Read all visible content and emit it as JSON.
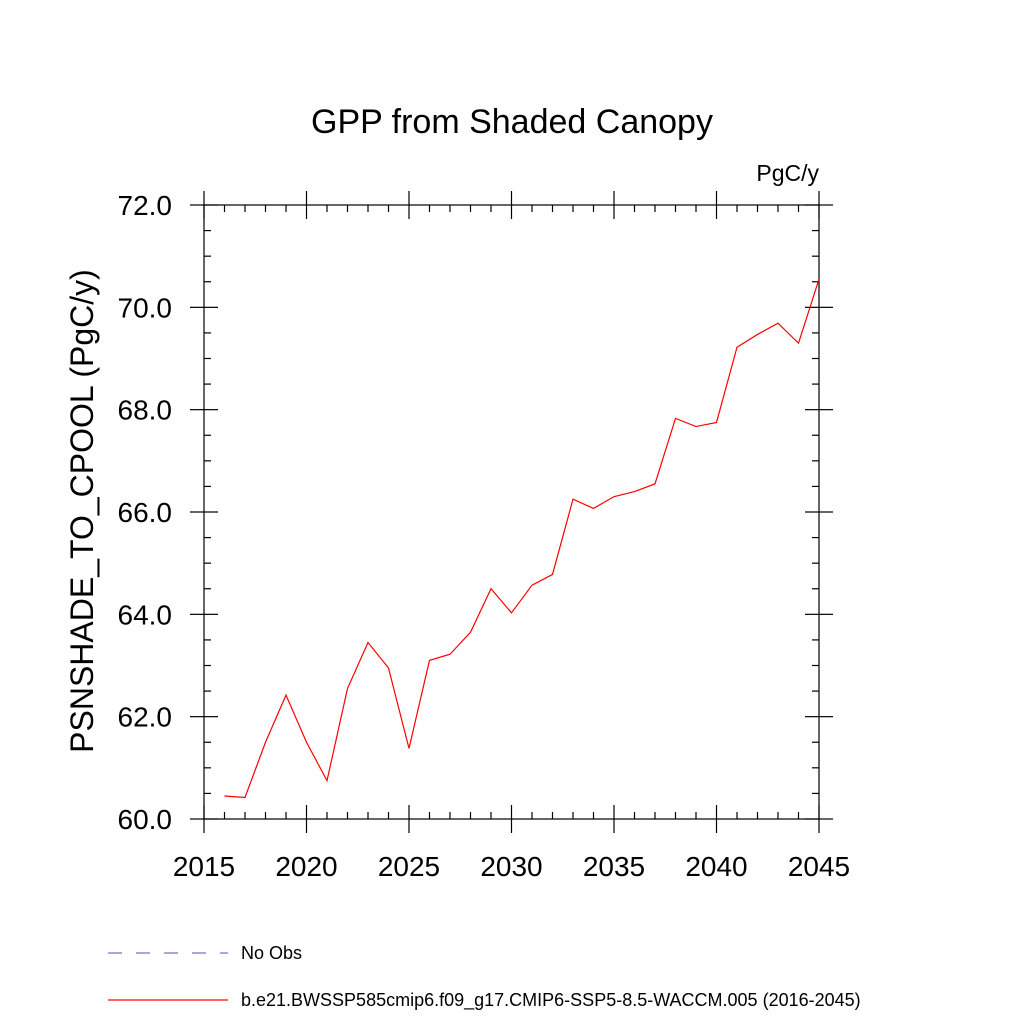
{
  "chart_data": {
    "type": "line",
    "title": "GPP from Shaded Canopy",
    "units": "PgC/y",
    "ylabel": "PSNSHADE_TO_CPOOL  (PgC/y)",
    "xlabel": "",
    "xlim": [
      2015,
      2045
    ],
    "ylim": [
      60.0,
      72.0
    ],
    "xticks": [
      "2015",
      "2020",
      "2025",
      "2030",
      "2035",
      "2040",
      "2045"
    ],
    "yticks": [
      "60.0",
      "62.0",
      "64.0",
      "66.0",
      "68.0",
      "70.0",
      "72.0"
    ],
    "grid": false,
    "legend_position": "bottom",
    "legend": [
      {
        "label": "No Obs",
        "color": "#7a6fc4",
        "style": "dashed"
      },
      {
        "label": "b.e21.BWSSP585cmip6.f09_g17.CMIP6-SSP5-8.5-WACCM.005 (2016-2045)",
        "color": "#ff0000",
        "style": "solid"
      }
    ],
    "series": [
      {
        "color": "#ff0000",
        "x": [
          2016,
          2017,
          2018,
          2019,
          2020,
          2021,
          2022,
          2023,
          2024,
          2025,
          2026,
          2027,
          2028,
          2029,
          2030,
          2031,
          2032,
          2033,
          2034,
          2035,
          2036,
          2037,
          2038,
          2039,
          2040,
          2041,
          2042,
          2043,
          2044,
          2045
        ],
        "values": [
          60.45,
          60.42,
          61.5,
          62.42,
          61.5,
          60.75,
          62.55,
          63.45,
          62.95,
          61.38,
          63.1,
          63.22,
          63.65,
          64.5,
          64.03,
          64.57,
          64.78,
          66.25,
          66.07,
          66.3,
          66.4,
          66.55,
          67.83,
          67.67,
          67.75,
          69.22,
          69.47,
          69.69,
          69.3,
          70.55
        ]
      }
    ]
  }
}
